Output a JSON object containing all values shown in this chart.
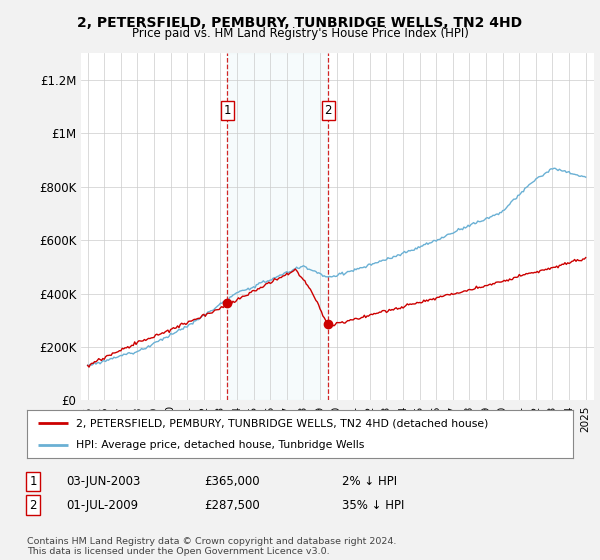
{
  "title": "2, PETERSFIELD, PEMBURY, TUNBRIDGE WELLS, TN2 4HD",
  "subtitle": "Price paid vs. HM Land Registry's House Price Index (HPI)",
  "bg_color": "#f2f2f2",
  "plot_bg_color": "#ffffff",
  "ylim": [
    0,
    1300000
  ],
  "yticks": [
    0,
    200000,
    400000,
    600000,
    800000,
    1000000,
    1200000
  ],
  "ytick_labels": [
    "£0",
    "£200K",
    "£400K",
    "£600K",
    "£800K",
    "£1M",
    "£1.2M"
  ],
  "transaction1_date": "03-JUN-2003",
  "transaction1_price": 365000,
  "transaction1_pct": "2%",
  "transaction1_year": 2003.42,
  "transaction2_date": "01-JUL-2009",
  "transaction2_price": 287500,
  "transaction2_pct": "35%",
  "transaction2_year": 2009.5,
  "hpi_color": "#6ab0d4",
  "sale_color": "#cc0000",
  "legend_label1": "2, PETERSFIELD, PEMBURY, TUNBRIDGE WELLS, TN2 4HD (detached house)",
  "legend_label2": "HPI: Average price, detached house, Tunbridge Wells",
  "footer1": "Contains HM Land Registry data © Crown copyright and database right 2024.",
  "footer2": "This data is licensed under the Open Government Licence v3.0."
}
